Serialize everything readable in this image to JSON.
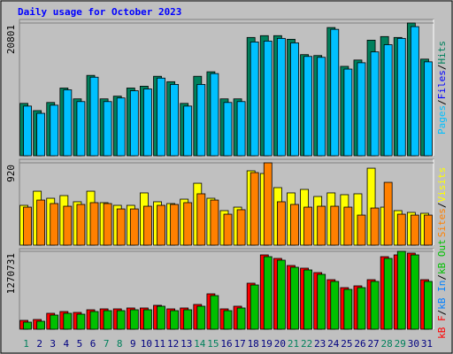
{
  "title": "Daily usage for October 2023",
  "categories": [
    "1",
    "2",
    "3",
    "4",
    "5",
    "6",
    "7",
    "8",
    "9",
    "10",
    "11",
    "12",
    "13",
    "14",
    "15",
    "16",
    "17",
    "18",
    "19",
    "20",
    "21",
    "22",
    "23",
    "24",
    "25",
    "26",
    "27",
    "28",
    "29",
    "30",
    "31"
  ],
  "category_color": "#000080",
  "weekend_color": "#00805c",
  "weekends": [
    0,
    6,
    7,
    13,
    14,
    20,
    21,
    27,
    28
  ],
  "panels": [
    {
      "type": "bar",
      "ylim": [
        0,
        20801
      ],
      "yticks": [
        20801
      ],
      "legend_reversed": true,
      "series": [
        {
          "name": "Hits",
          "color": "#00805c",
          "values": [
            8207,
            7075,
            8349,
            10613,
            8915,
            12594,
            8915,
            9339,
            10613,
            10896,
            12452,
            11603,
            8207,
            12452,
            13160,
            8915,
            8915,
            18537,
            18820,
            18820,
            18254,
            15848,
            15707,
            20094,
            14009,
            14999,
            18112,
            18678,
            18537,
            20801,
            15141
          ]
        },
        {
          "name": "Files",
          "color": "#0000ff",
          "values": [
            null,
            null,
            null,
            null,
            null,
            null,
            null,
            null,
            null,
            null,
            null,
            null,
            null,
            null,
            null,
            null,
            null,
            null,
            null,
            null,
            null,
            null,
            null,
            null,
            null,
            null,
            null,
            null,
            null,
            null,
            null
          ]
        },
        {
          "name": "Pages",
          "color": "#00c0ff",
          "values": [
            7783,
            6651,
            7924,
            10330,
            8490,
            12311,
            8490,
            9056,
            10188,
            10471,
            12169,
            11179,
            7783,
            11179,
            12877,
            8349,
            8490,
            17829,
            17971,
            18395,
            17688,
            15565,
            15424,
            19810,
            13584,
            14575,
            16273,
            17405,
            18395,
            20235,
            14716
          ]
        }
      ]
    },
    {
      "type": "bar",
      "ylim": [
        0,
        920
      ],
      "yticks": [
        920
      ],
      "legend_reversed": true,
      "series": [
        {
          "name": "Visits",
          "color": "#ffff00",
          "values": [
            445,
            603,
            524,
            554,
            485,
            603,
            475,
            445,
            445,
            584,
            485,
            465,
            514,
            692,
            524,
            386,
            425,
            831,
            801,
            643,
            584,
            623,
            544,
            584,
            564,
            574,
            860,
            425,
            386,
            366,
            356
          ]
        },
        {
          "name": "Sites",
          "color": "#ff8000",
          "values": [
            425,
            504,
            465,
            435,
            455,
            475,
            465,
            405,
            405,
            435,
            445,
            455,
            475,
            574,
            504,
            346,
            396,
            811,
            920,
            485,
            455,
            425,
            435,
            435,
            425,
            336,
            415,
            702,
            346,
            336,
            336
          ]
        }
      ]
    },
    {
      "type": "bar",
      "ylim": [
        0,
        1270731
      ],
      "yticks": [
        1270731
      ],
      "legend_reversed": false,
      "series": [
        {
          "name": "kB F",
          "color": "#ff0000",
          "values": [
            144400,
            158840,
            259920,
            288800,
            274360,
            317680,
            332120,
            332120,
            346560,
            346560,
            389880,
            332120,
            346560,
            404320,
            577600,
            332120,
            375440,
            750880,
            1212960,
            1155200,
            1039680,
            996360,
            924160,
            808640,
            678680,
            707560,
            808640,
            1184080,
            1212960,
            1241840,
            808640
          ]
        },
        {
          "name": "kB In",
          "color": "#0080ff",
          "values": [
            null,
            null,
            null,
            null,
            null,
            null,
            null,
            null,
            null,
            null,
            null,
            null,
            null,
            null,
            null,
            null,
            null,
            null,
            null,
            null,
            null,
            null,
            null,
            null,
            null,
            null,
            null,
            null,
            null,
            null,
            null
          ]
        },
        {
          "name": "kB Out",
          "color": "#00c000",
          "values": [
            115520,
            129960,
            231040,
            259920,
            245480,
            288800,
            303240,
            303240,
            317680,
            317680,
            375440,
            303240,
            317680,
            375440,
            548720,
            303240,
            346560,
            722000,
            1184080,
            1126320,
            1010800,
            967480,
            895280,
            779760,
            649800,
            678680,
            779760,
            1155200,
            1270731,
            1212960,
            779760
          ]
        }
      ]
    }
  ]
}
